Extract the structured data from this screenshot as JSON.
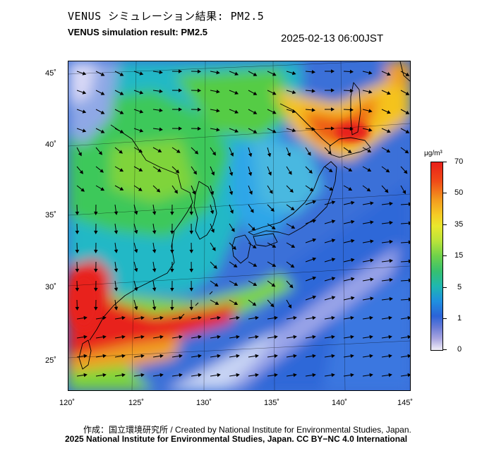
{
  "header": {
    "title_jp": "VENUS シミュレーション結果: PM2.5",
    "title_en": "VENUS simulation result: PM2.5",
    "datetime": "2025-02-13 06:00JST"
  },
  "axes": {
    "lat_labels": [
      "45˚",
      "40˚",
      "35˚",
      "30˚",
      "25˚"
    ],
    "lon_labels": [
      "120˚",
      "125˚",
      "130˚",
      "135˚",
      "140˚",
      "145˚"
    ]
  },
  "colorbar": {
    "unit": "μg/m³",
    "ticks": [
      "70",
      "50",
      "35",
      "15",
      "5",
      "1",
      "0"
    ],
    "colors": [
      "#e8201a",
      "#f39b1e",
      "#e9e72d",
      "#6ed14a",
      "#1fb7b0",
      "#2c63d8",
      "#f0eef8"
    ]
  },
  "footer": {
    "credit": "作成：国立環境研究所 / Created by National Institute for Environmental Studies, Japan.",
    "copyright": "2025 National Institute for Environmental Studies, Japan. CC BY−NC 4.0 International"
  },
  "map_colors": {
    "sea": "#3b6fd8",
    "high": "#e8201a",
    "mid": "#33cc55",
    "low": "#23b8c8",
    "clean": "#b8b8ee"
  }
}
